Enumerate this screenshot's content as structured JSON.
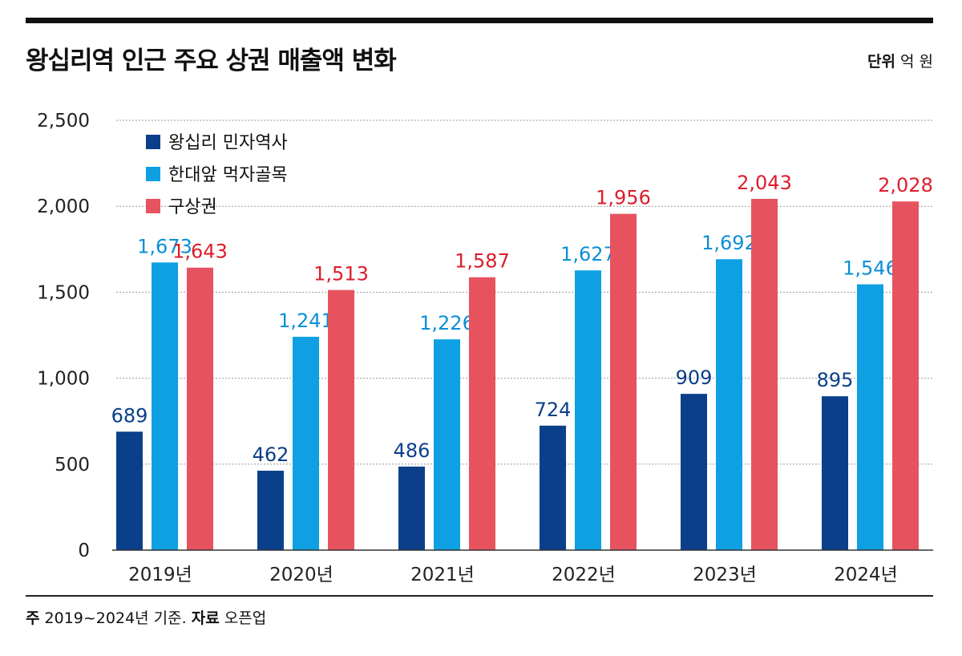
{
  "header": {
    "title": "왕십리역 인근 주요 상권 매출액 변화",
    "unit_label": "단위",
    "unit_value": "억 원"
  },
  "footer": {
    "note_label": "주",
    "note_text": "2019~2024년 기준.",
    "source_label": "자료",
    "source_text": "오픈업"
  },
  "colors": {
    "series1": "#0b3f8a",
    "series2": "#0ea0e3",
    "series3": "#e6535f",
    "label1": "#0b3f8a",
    "label2": "#0a8fd6",
    "label3": "#dd1c2b",
    "grid": "#9a9a9a",
    "axis": "#333333"
  },
  "chart_data": {
    "type": "bar",
    "title": "왕십리역 인근 주요 상권 매출액 변화",
    "xlabel": "",
    "ylabel": "",
    "ylim": [
      0,
      2500
    ],
    "yticks": [
      0,
      500,
      1000,
      1500,
      2000,
      2500
    ],
    "ytick_labels": [
      "0",
      "500",
      "1,000",
      "1,500",
      "2,000",
      "2,500"
    ],
    "grid": true,
    "legend_position": "top-left",
    "categories": [
      "2019년",
      "2020년",
      "2021년",
      "2022년",
      "2023년",
      "2024년"
    ],
    "series": [
      {
        "name": "왕십리 민자역사",
        "values": [
          689,
          462,
          486,
          724,
          909,
          895
        ],
        "labels": [
          "689",
          "462",
          "486",
          "724",
          "909",
          "895"
        ]
      },
      {
        "name": "한대앞 먹자골목",
        "values": [
          1673,
          1241,
          1226,
          1627,
          1692,
          1546
        ],
        "labels": [
          "1,673",
          "1,241",
          "1,226",
          "1,627",
          "1,692",
          "1,546"
        ]
      },
      {
        "name": "구상권",
        "values": [
          1643,
          1513,
          1587,
          1956,
          2043,
          2028
        ],
        "labels": [
          "1,643",
          "1,513",
          "1,587",
          "1,956",
          "2,043",
          "2,028"
        ]
      }
    ]
  }
}
